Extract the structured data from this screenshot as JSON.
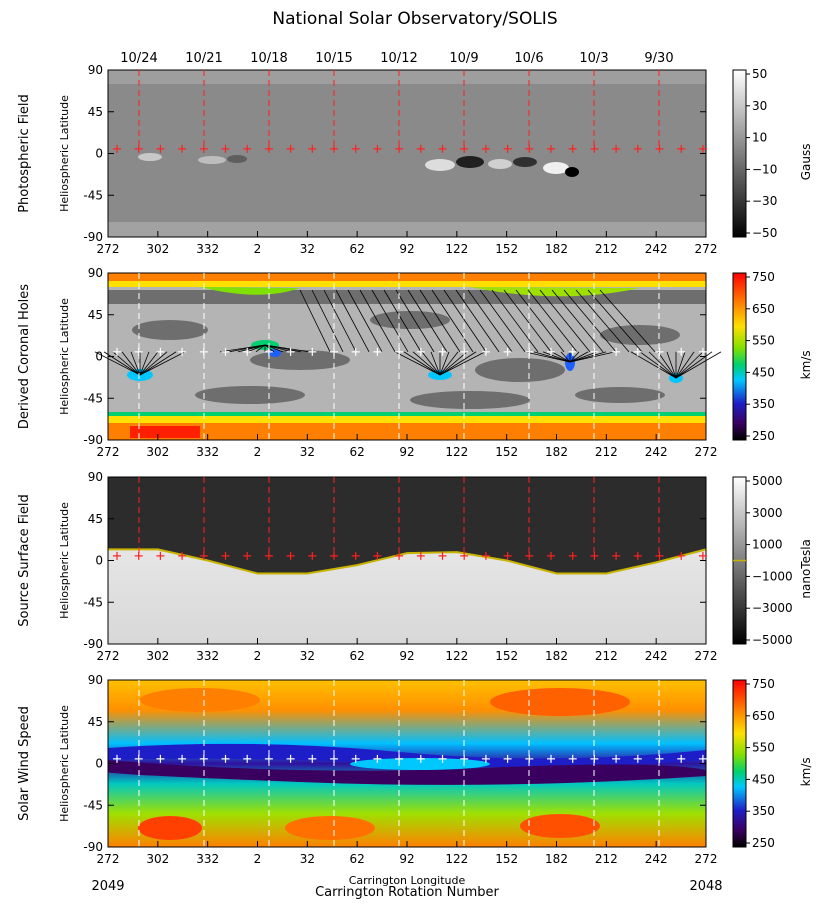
{
  "title": "National Solar Observatory/SOLIS",
  "date_labels": [
    "10/24",
    "10/21",
    "10/18",
    "10/15",
    "10/12",
    "10/9",
    "10/6",
    "10/3",
    "9/30"
  ],
  "colors": {
    "date_label": "#ff2020",
    "marker": "#ff2020",
    "marker_white": "#ffffff",
    "neutral_line": "#c8b400",
    "cbar_speed": [
      "#ffffff",
      "#3a0060",
      "#1e1ec8",
      "#00c8ff",
      "#00d060",
      "#a0e000",
      "#ffe000",
      "#ff8000",
      "#ff0000"
    ]
  },
  "chart_data": [
    {
      "type": "heatmap",
      "name": "Photospheric Field",
      "ylabel": "Heliospheric Latitude",
      "ylim": [
        -90,
        90
      ],
      "yticks": [
        "90",
        "45",
        "0",
        "-45",
        "-90"
      ],
      "xticks": [
        "272",
        "302",
        "332",
        "2",
        "32",
        "62",
        "92",
        "122",
        "152",
        "182",
        "212",
        "242",
        "272"
      ],
      "colorbar": {
        "label": "Gauss",
        "ticks": [
          "50",
          "30",
          "10",
          "−10",
          "−30",
          "−50"
        ],
        "scale": "gray"
      }
    },
    {
      "type": "heatmap",
      "name": "Derived Coronal Holes",
      "ylabel": "Heliospheric Latitude",
      "ylim": [
        -90,
        90
      ],
      "yticks": [
        "90",
        "45",
        "0",
        "-45",
        "-90"
      ],
      "xticks": [
        "272",
        "302",
        "332",
        "2",
        "32",
        "62",
        "92",
        "122",
        "152",
        "182",
        "212",
        "242",
        "272"
      ],
      "colorbar": {
        "label": "km/s",
        "ticks": [
          "750",
          "650",
          "550",
          "450",
          "350",
          "250"
        ],
        "scale": "speed"
      }
    },
    {
      "type": "heatmap",
      "name": "Source Surface Field",
      "ylabel": "Heliospheric Latitude",
      "ylim": [
        -90,
        90
      ],
      "yticks": [
        "90",
        "45",
        "0",
        "-45",
        "-90"
      ],
      "xticks": [
        "272",
        "302",
        "332",
        "2",
        "32",
        "62",
        "92",
        "122",
        "152",
        "182",
        "212",
        "242",
        "272"
      ],
      "colorbar": {
        "label": "nanoTesla",
        "ticks": [
          "5000",
          "3000",
          "1000",
          "−1000",
          "−3000",
          "−5000"
        ],
        "scale": "gray"
      },
      "neutral_line": {
        "x": [
          272,
          302,
          332,
          2,
          32,
          62,
          92,
          122,
          152,
          182,
          212,
          242,
          272
        ],
        "y": [
          12,
          12,
          0,
          -14,
          -14,
          -5,
          8,
          9,
          0,
          -14,
          -14,
          -2,
          12
        ]
      }
    },
    {
      "type": "heatmap",
      "name": "Solar Wind Speed",
      "ylabel": "Heliospheric Latitude",
      "ylim": [
        -90,
        90
      ],
      "yticks": [
        "90",
        "45",
        "0",
        "-45",
        "-90"
      ],
      "xticks": [
        "272",
        "302",
        "332",
        "2",
        "32",
        "62",
        "92",
        "122",
        "152",
        "182",
        "212",
        "242",
        "272"
      ],
      "xlabel": "Carrington Longitude",
      "xlabel2": "Carrington Rotation Number",
      "rotation_left": "2049",
      "rotation_right": "2048",
      "colorbar": {
        "label": "km/s",
        "ticks": [
          "750",
          "650",
          "550",
          "450",
          "350",
          "250"
        ],
        "scale": "speed"
      }
    }
  ]
}
